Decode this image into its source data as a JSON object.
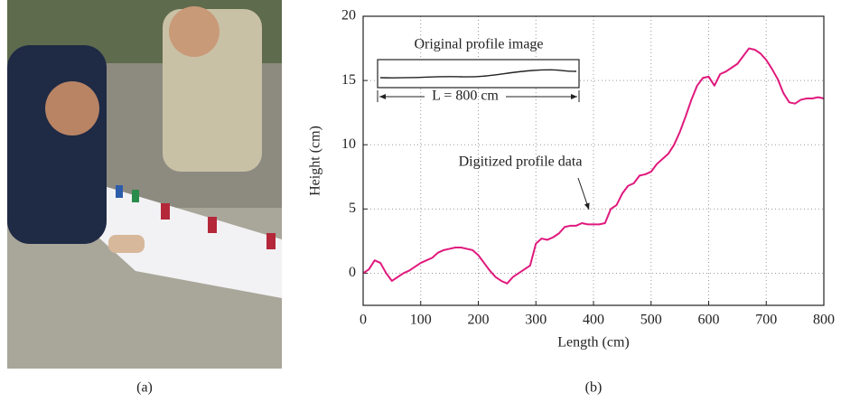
{
  "panel_labels": [
    "(a)",
    "(b)"
  ],
  "chart_data": {
    "type": "line",
    "xlabel": "Length (cm)",
    "ylabel": "Height (cm)",
    "annotations": [
      "Original profile image",
      "L = 800 cm",
      "Digitized profile data"
    ],
    "color": "#e0197d",
    "x": [
      0,
      10,
      20,
      30,
      40,
      50,
      60,
      70,
      80,
      90,
      100,
      110,
      120,
      130,
      140,
      150,
      160,
      170,
      180,
      190,
      200,
      210,
      220,
      230,
      240,
      250,
      260,
      270,
      280,
      290,
      300,
      310,
      320,
      330,
      340,
      350,
      360,
      370,
      380,
      390,
      400,
      410,
      420,
      430,
      440,
      450,
      460,
      470,
      480,
      490,
      500,
      510,
      520,
      530,
      540,
      550,
      560,
      570,
      580,
      590,
      600,
      610,
      620,
      630,
      640,
      650,
      660,
      670,
      680,
      690,
      700,
      710,
      720,
      730,
      740,
      750,
      760,
      770,
      780,
      790,
      800
    ],
    "values": [
      0,
      0.3,
      1,
      0.8,
      0,
      -0.6,
      -0.3,
      0,
      0.2,
      0.5,
      0.8,
      1,
      1.2,
      1.6,
      1.8,
      1.9,
      2,
      2,
      1.9,
      1.8,
      1.4,
      0.8,
      0.2,
      -0.3,
      -0.6,
      -0.8,
      -0.3,
      0,
      0.3,
      0.6,
      2.3,
      2.7,
      2.6,
      2.8,
      3.1,
      3.6,
      3.7,
      3.7,
      3.9,
      3.8,
      3.8,
      3.8,
      3.9,
      5,
      5.3,
      6.2,
      6.8,
      7,
      7.6,
      7.7,
      7.9,
      8.5,
      8.9,
      9.3,
      10,
      11,
      12.2,
      13.5,
      14.6,
      15.2,
      15.3,
      14.6,
      15.5,
      15.7,
      16,
      16.3,
      16.9,
      17.5,
      17.4,
      17.1,
      16.6,
      15.9,
      15.1,
      14,
      13.3,
      13.2,
      13.5,
      13.6,
      13.6,
      13.7,
      13.6
    ],
    "xlim": [
      0,
      800
    ],
    "xticks": [
      0,
      100,
      200,
      300,
      400,
      500,
      600,
      700,
      800
    ],
    "ylim": [
      -2.5,
      20
    ],
    "yticks": [
      0,
      5,
      10,
      15,
      20
    ],
    "grid": true
  }
}
